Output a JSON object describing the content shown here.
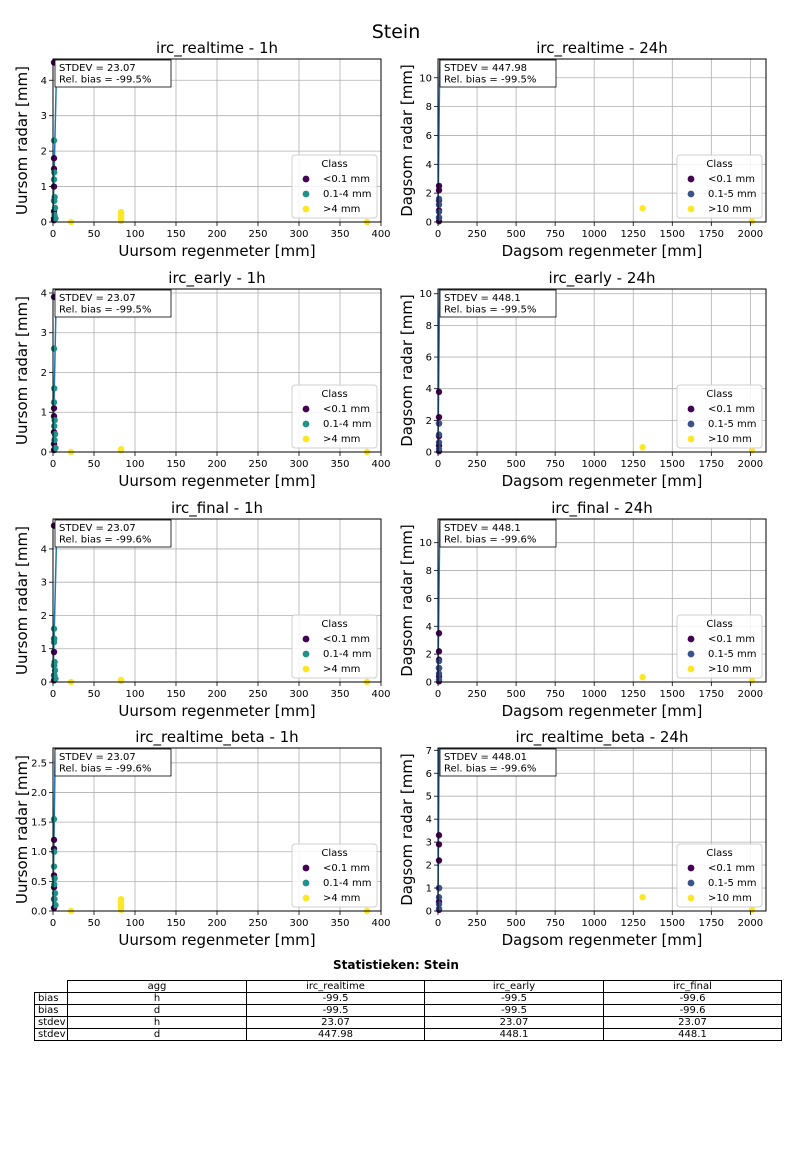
{
  "figure_title": "Stein",
  "colors": {
    "lt01": "#440154",
    "mid_h": "#21918c",
    "mid_d": "#3b528b",
    "gt": "#fde725",
    "line": "#1f77b4"
  },
  "chart_data": [
    {
      "type": "scatter",
      "title": "irc_realtime - 1h",
      "xlabel": "Uursom regenmeter [mm]",
      "ylabel": "Uursom radar [mm]",
      "xlim": [
        0,
        400
      ],
      "ylim": [
        0,
        4.6
      ],
      "xticks": [
        0,
        50,
        100,
        150,
        200,
        250,
        300,
        350,
        400
      ],
      "yticks": [
        0,
        1,
        2,
        3,
        4
      ],
      "annotation": [
        "STDEV = 23.07",
        "Rel. bias = -99.5%"
      ],
      "grid": true,
      "legend": "lower-right",
      "legend_title": "Class",
      "line": [
        [
          0,
          0
        ],
        [
          4.6,
          4.6
        ]
      ],
      "series": [
        {
          "name": "<0.1 mm",
          "color": "lt01",
          "points": [
            [
              0,
              4.5
            ],
            [
              0.2,
              1.8
            ],
            [
              0.1,
              1.5
            ],
            [
              0.3,
              1.0
            ],
            [
              0.1,
              0.6
            ],
            [
              0.2,
              0.3
            ],
            [
              0.1,
              0.1
            ],
            [
              0.3,
              0.05
            ]
          ]
        },
        {
          "name": "0.1-4 mm",
          "color": "mid_h",
          "points": [
            [
              1.2,
              2.3
            ],
            [
              1.5,
              1.4
            ],
            [
              1.0,
              1.2
            ],
            [
              2.0,
              0.7
            ],
            [
              1.5,
              0.6
            ],
            [
              2.5,
              0.4
            ],
            [
              1.8,
              0.2
            ],
            [
              3.0,
              0.1
            ]
          ]
        },
        {
          "name": ">4 mm",
          "color": "gt",
          "points": [
            [
              22,
              0.0
            ],
            [
              83,
              0.28
            ],
            [
              83,
              0.22
            ],
            [
              83,
              0.15
            ],
            [
              83,
              0.08
            ],
            [
              83,
              0.03
            ],
            [
              383,
              0.0
            ]
          ]
        }
      ]
    },
    {
      "type": "scatter",
      "title": "irc_realtime - 24h",
      "xlabel": "Dagsom regenmeter [mm]",
      "ylabel": "Dagsom radar [mm]",
      "xlim": [
        0,
        2100
      ],
      "ylim": [
        0,
        11.3
      ],
      "xticks": [
        0,
        250,
        500,
        750,
        1000,
        1250,
        1500,
        1750,
        2000
      ],
      "yticks": [
        0,
        2,
        4,
        6,
        8,
        10
      ],
      "annotation": [
        "STDEV = 447.98",
        "Rel. bias = -99.5%"
      ],
      "grid": true,
      "legend": "lower-right",
      "legend_title": "Class",
      "line": [
        [
          0,
          0
        ],
        [
          11.3,
          11.3
        ]
      ],
      "series": [
        {
          "name": "<0.1 mm",
          "color": "lt01",
          "points": [
            [
              0,
              2.5
            ],
            [
              0,
              2.2
            ],
            [
              0,
              1.5
            ],
            [
              0,
              0.8
            ],
            [
              0,
              0.3
            ],
            [
              0,
              0.05
            ]
          ]
        },
        {
          "name": "0.1-5 mm",
          "color": "mid_d",
          "points": [
            [
              2,
              1.6
            ],
            [
              3,
              1.2
            ],
            [
              2,
              0.7
            ],
            [
              3,
              0.3
            ]
          ]
        },
        {
          "name": ">10 mm",
          "color": "gt",
          "points": [
            [
              1310,
              0.95
            ],
            [
              2010,
              0.05
            ]
          ]
        }
      ]
    },
    {
      "type": "scatter",
      "title": "irc_early - 1h",
      "xlabel": "Uursom regenmeter [mm]",
      "ylabel": "Uursom radar [mm]",
      "xlim": [
        0,
        400
      ],
      "ylim": [
        0,
        4.1
      ],
      "xticks": [
        0,
        50,
        100,
        150,
        200,
        250,
        300,
        350,
        400
      ],
      "yticks": [
        0,
        1,
        2,
        3,
        4
      ],
      "annotation": [
        "STDEV = 23.07",
        "Rel. bias = -99.5%"
      ],
      "grid": true,
      "legend": "lower-right",
      "legend_title": "Class",
      "line": [
        [
          0,
          0
        ],
        [
          4.1,
          4.1
        ]
      ],
      "series": [
        {
          "name": "<0.1 mm",
          "color": "lt01",
          "points": [
            [
              0,
              3.9
            ],
            [
              0.2,
              1.1
            ],
            [
              0.1,
              0.9
            ],
            [
              0.3,
              0.5
            ],
            [
              0.1,
              0.2
            ],
            [
              0.2,
              0.05
            ]
          ]
        },
        {
          "name": "0.1-4 mm",
          "color": "mid_h",
          "points": [
            [
              1.2,
              2.6
            ],
            [
              1.5,
              1.6
            ],
            [
              1.0,
              1.25
            ],
            [
              2.0,
              0.8
            ],
            [
              1.5,
              0.65
            ],
            [
              2.5,
              0.45
            ],
            [
              1.8,
              0.3
            ],
            [
              3.0,
              0.1
            ]
          ]
        },
        {
          "name": ">4 mm",
          "color": "gt",
          "points": [
            [
              22,
              0.0
            ],
            [
              83,
              0.07
            ],
            [
              83,
              0.04
            ],
            [
              383,
              0.0
            ]
          ]
        }
      ]
    },
    {
      "type": "scatter",
      "title": "irc_early - 24h",
      "xlabel": "Dagsom regenmeter [mm]",
      "ylabel": "Dagsom radar [mm]",
      "xlim": [
        0,
        2100
      ],
      "ylim": [
        0,
        10.3
      ],
      "xticks": [
        0,
        250,
        500,
        750,
        1000,
        1250,
        1500,
        1750,
        2000
      ],
      "yticks": [
        0,
        2,
        4,
        6,
        8,
        10
      ],
      "annotation": [
        "STDEV = 448.1",
        "Rel. bias = -99.5%"
      ],
      "grid": true,
      "legend": "lower-right",
      "legend_title": "Class",
      "line": [
        [
          0,
          0
        ],
        [
          10.3,
          10.3
        ]
      ],
      "series": [
        {
          "name": "<0.1 mm",
          "color": "lt01",
          "points": [
            [
              0,
              3.8
            ],
            [
              0,
              2.2
            ],
            [
              0,
              1.8
            ],
            [
              0,
              1.0
            ],
            [
              0,
              0.4
            ],
            [
              0,
              0.05
            ]
          ]
        },
        {
          "name": "0.1-5 mm",
          "color": "mid_d",
          "points": [
            [
              2,
              1.8
            ],
            [
              3,
              1.1
            ],
            [
              2,
              0.6
            ],
            [
              3,
              0.2
            ]
          ]
        },
        {
          "name": ">10 mm",
          "color": "gt",
          "points": [
            [
              1310,
              0.3
            ],
            [
              2010,
              0.1
            ]
          ]
        }
      ]
    },
    {
      "type": "scatter",
      "title": "irc_final - 1h",
      "xlabel": "Uursom regenmeter [mm]",
      "ylabel": "Uursom radar [mm]",
      "xlim": [
        0,
        400
      ],
      "ylim": [
        0,
        4.9
      ],
      "xticks": [
        0,
        50,
        100,
        150,
        200,
        250,
        300,
        350,
        400
      ],
      "yticks": [
        0,
        1,
        2,
        3,
        4
      ],
      "annotation": [
        "STDEV = 23.07",
        "Rel. bias = -99.6%"
      ],
      "grid": true,
      "legend": "lower-right",
      "legend_title": "Class",
      "line": [
        [
          0,
          0
        ],
        [
          4.9,
          4.9
        ]
      ],
      "series": [
        {
          "name": "<0.1 mm",
          "color": "lt01",
          "points": [
            [
              0,
              4.7
            ],
            [
              0.2,
              1.3
            ],
            [
              0.1,
              0.9
            ],
            [
              0.3,
              0.5
            ],
            [
              0.1,
              0.2
            ],
            [
              0.2,
              0.05
            ]
          ]
        },
        {
          "name": "0.1-4 mm",
          "color": "mid_h",
          "points": [
            [
              1.2,
              1.6
            ],
            [
              1.5,
              1.3
            ],
            [
              1.0,
              1.2
            ],
            [
              2.0,
              0.6
            ],
            [
              1.5,
              0.5
            ],
            [
              2.5,
              0.35
            ],
            [
              1.8,
              0.2
            ],
            [
              3.0,
              0.1
            ]
          ]
        },
        {
          "name": ">4 mm",
          "color": "gt",
          "points": [
            [
              22,
              0.0
            ],
            [
              83,
              0.06
            ],
            [
              83,
              0.03
            ],
            [
              383,
              0.0
            ]
          ]
        }
      ]
    },
    {
      "type": "scatter",
      "title": "irc_final - 24h",
      "xlabel": "Dagsom regenmeter [mm]",
      "ylabel": "Dagsom radar [mm]",
      "xlim": [
        0,
        2100
      ],
      "ylim": [
        0,
        11.7
      ],
      "xticks": [
        0,
        250,
        500,
        750,
        1000,
        1250,
        1500,
        1750,
        2000
      ],
      "yticks": [
        0,
        2,
        4,
        6,
        8,
        10
      ],
      "annotation": [
        "STDEV = 448.1",
        "Rel. bias = -99.6%"
      ],
      "grid": true,
      "legend": "lower-right",
      "legend_title": "Class",
      "line": [
        [
          0,
          0
        ],
        [
          11.7,
          11.7
        ]
      ],
      "series": [
        {
          "name": "<0.1 mm",
          "color": "lt01",
          "points": [
            [
              0,
              3.5
            ],
            [
              0,
              2.2
            ],
            [
              0,
              1.6
            ],
            [
              0,
              1.0
            ],
            [
              0,
              0.4
            ],
            [
              0,
              0.05
            ]
          ]
        },
        {
          "name": "0.1-5 mm",
          "color": "mid_d",
          "points": [
            [
              2,
              1.5
            ],
            [
              3,
              1.0
            ],
            [
              2,
              0.6
            ],
            [
              3,
              0.2
            ]
          ]
        },
        {
          "name": ">10 mm",
          "color": "gt",
          "points": [
            [
              1310,
              0.35
            ],
            [
              2010,
              0.1
            ]
          ]
        }
      ]
    },
    {
      "type": "scatter",
      "title": "irc_realtime_beta - 1h",
      "xlabel": "Uursom regenmeter [mm]",
      "ylabel": "Uursom radar [mm]",
      "xlim": [
        0,
        400
      ],
      "ylim": [
        0,
        2.75
      ],
      "xticks": [
        0,
        50,
        100,
        150,
        200,
        250,
        300,
        350,
        400
      ],
      "yticks": [
        0,
        0.5,
        1.0,
        1.5,
        2.0,
        2.5
      ],
      "annotation": [
        "STDEV = 23.07",
        "Rel. bias = -99.6%"
      ],
      "grid": true,
      "legend": "lower-right",
      "legend_title": "Class",
      "line": [
        [
          0,
          0
        ],
        [
          2.75,
          2.75
        ]
      ],
      "series": [
        {
          "name": "<0.1 mm",
          "color": "lt01",
          "points": [
            [
              0,
              1.2
            ],
            [
              0.2,
              1.05
            ],
            [
              0.1,
              0.6
            ],
            [
              0.3,
              0.4
            ],
            [
              0.1,
              0.2
            ],
            [
              0.2,
              0.05
            ]
          ]
        },
        {
          "name": "0.1-4 mm",
          "color": "mid_h",
          "points": [
            [
              1.2,
              1.55
            ],
            [
              1.5,
              1.0
            ],
            [
              1.0,
              0.75
            ],
            [
              2.0,
              0.55
            ],
            [
              1.5,
              0.45
            ],
            [
              2.5,
              0.3
            ],
            [
              1.8,
              0.2
            ],
            [
              3.0,
              0.1
            ]
          ]
        },
        {
          "name": ">4 mm",
          "color": "gt",
          "points": [
            [
              22,
              0.0
            ],
            [
              83,
              0.2
            ],
            [
              83,
              0.15
            ],
            [
              83,
              0.1
            ],
            [
              83,
              0.06
            ],
            [
              83,
              0.02
            ],
            [
              383,
              0.0
            ]
          ]
        }
      ]
    },
    {
      "type": "scatter",
      "title": "irc_realtime_beta - 24h",
      "xlabel": "Dagsom regenmeter [mm]",
      "ylabel": "Dagsom radar [mm]",
      "xlim": [
        0,
        2100
      ],
      "ylim": [
        0,
        7.1
      ],
      "xticks": [
        0,
        250,
        500,
        750,
        1000,
        1250,
        1500,
        1750,
        2000
      ],
      "yticks": [
        0,
        1,
        2,
        3,
        4,
        5,
        6,
        7
      ],
      "annotation": [
        "STDEV = 448.01",
        "Rel. bias = -99.6%"
      ],
      "grid": true,
      "legend": "lower-right",
      "legend_title": "Class",
      "line": [
        [
          0,
          0
        ],
        [
          7.1,
          7.1
        ]
      ],
      "series": [
        {
          "name": "<0.1 mm",
          "color": "lt01",
          "points": [
            [
              0,
              3.3
            ],
            [
              0,
              2.9
            ],
            [
              0,
              2.2
            ],
            [
              0,
              1.0
            ],
            [
              0,
              0.4
            ],
            [
              0,
              0.05
            ]
          ]
        },
        {
          "name": "0.1-5 mm",
          "color": "mid_d",
          "points": [
            [
              2,
              1.0
            ],
            [
              3,
              0.6
            ],
            [
              2,
              0.3
            ],
            [
              3,
              0.1
            ]
          ]
        },
        {
          "name": ">10 mm",
          "color": "gt",
          "points": [
            [
              1310,
              0.6
            ],
            [
              2010,
              0.05
            ]
          ]
        }
      ]
    }
  ],
  "stats_table": {
    "title": "Statistieken: Stein",
    "columns": [
      "agg",
      "irc_realtime",
      "irc_early",
      "irc_final"
    ],
    "rows": [
      {
        "label": "bias",
        "cells": [
          "h",
          "-99.5",
          "-99.5",
          "-99.6"
        ]
      },
      {
        "label": "bias",
        "cells": [
          "d",
          "-99.5",
          "-99.5",
          "-99.6"
        ]
      },
      {
        "label": "stdev",
        "cells": [
          "h",
          "23.07",
          "23.07",
          "23.07"
        ]
      },
      {
        "label": "stdev",
        "cells": [
          "d",
          "447.98",
          "448.1",
          "448.1"
        ]
      }
    ]
  }
}
